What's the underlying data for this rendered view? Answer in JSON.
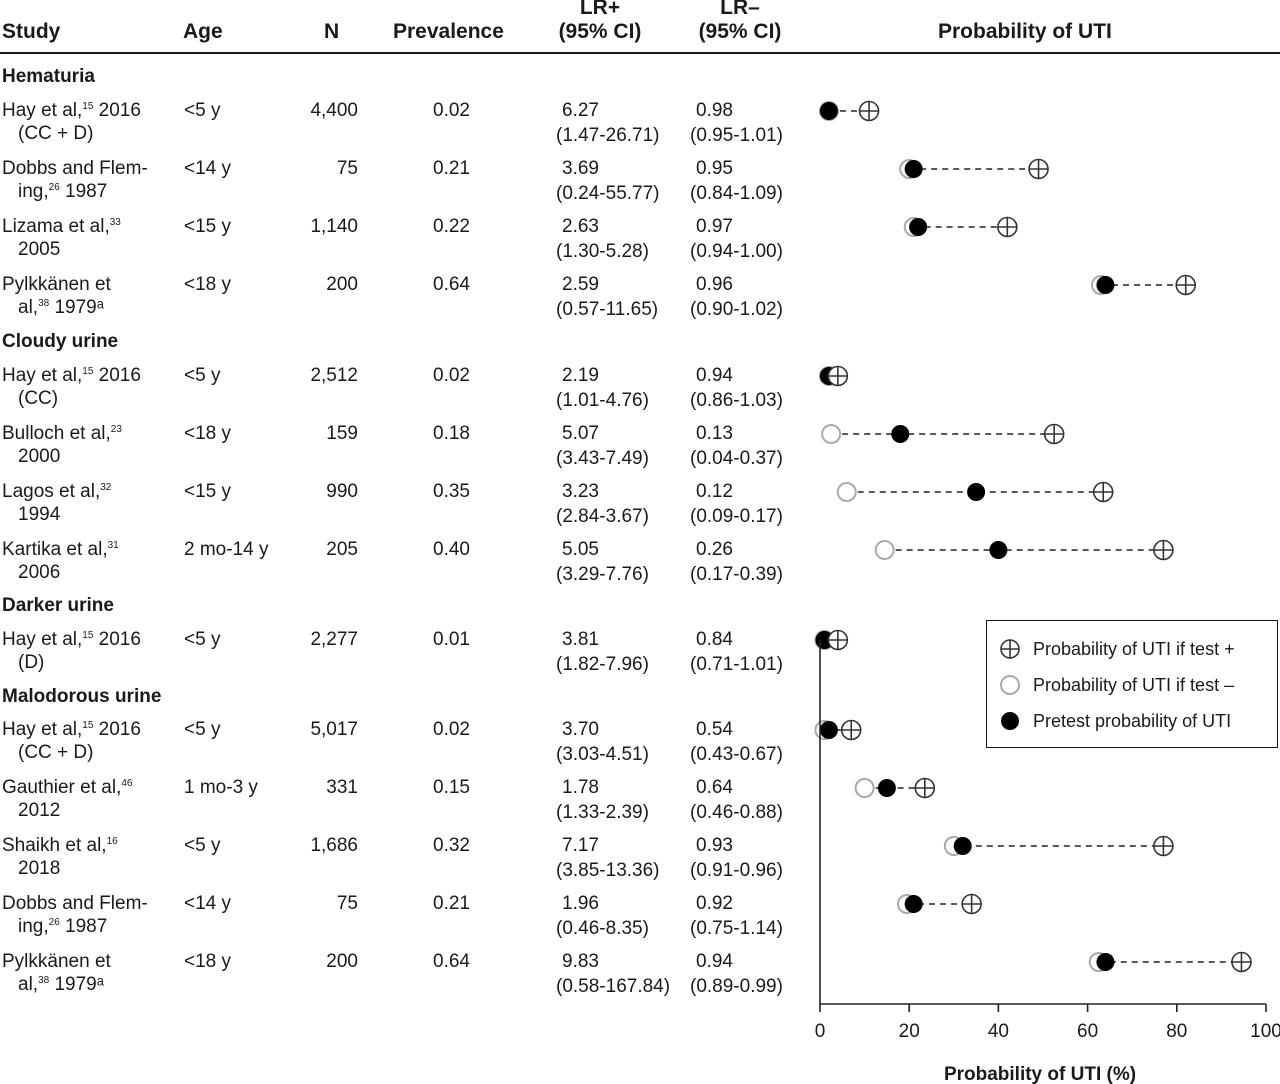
{
  "headers": {
    "study": "Study",
    "age": "Age",
    "n": "N",
    "prevalence": "Prevalence",
    "lrpos": [
      "LR+",
      "(95% CI)"
    ],
    "lrneg": [
      "LR–",
      "(95% CI)"
    ],
    "plot": "Probability of UTI"
  },
  "legend": {
    "pos": "Probability of UTI if test +",
    "neg": "Probability of UTI if test –",
    "pre": "Pretest probability of UTI"
  },
  "chart_data": {
    "type": "scatter",
    "xlabel": "Probability of UTI (%)",
    "xlim": [
      0,
      100
    ],
    "xticks": [
      "0",
      "20",
      "40",
      "60",
      "80",
      "100"
    ],
    "groups": [
      {
        "label": "Hematuria",
        "rows": [
          {
            "study": [
              "Hay et al,",
              "15",
              " 2016"
            ],
            "study2": "(CC + D)",
            "age": "<5 y",
            "n": "4,400",
            "prev": "0.02",
            "lrpos": "6.27",
            "lrpos_ci": "(1.47-26.71)",
            "lrneg": "0.98",
            "lrneg_ci": "(0.95-1.01)",
            "pre": 2,
            "neg": 2,
            "pos": 11
          },
          {
            "study": [
              "Dobbs and Flem-",
              "",
              ""
            ],
            "study2": [
              "ing,",
              "26",
              " 1987"
            ],
            "age": "<14 y",
            "n": "75",
            "prev": "0.21",
            "lrpos": "3.69",
            "lrpos_ci": "(0.24-55.77)",
            "lrneg": "0.95",
            "lrneg_ci": "(0.84-1.09)",
            "pre": 21,
            "neg": 20,
            "pos": 49
          },
          {
            "study": [
              "Lizama et al,",
              "33",
              ""
            ],
            "study2": "2005",
            "age": "<15 y",
            "n": "1,140",
            "prev": "0.22",
            "lrpos": "2.63",
            "lrpos_ci": "(1.30-5.28)",
            "lrneg": "0.97",
            "lrneg_ci": "(0.94-1.00)",
            "pre": 22,
            "neg": 21,
            "pos": 42
          },
          {
            "study": [
              "Pylkkänen et",
              "",
              ""
            ],
            "study2": [
              "al,",
              "38",
              " 1979ᵃ"
            ],
            "age": "<18 y",
            "n": "200",
            "prev": "0.64",
            "lrpos": "2.59",
            "lrpos_ci": "(0.57-11.65)",
            "lrneg": "0.96",
            "lrneg_ci": "(0.90-1.02)",
            "pre": 64,
            "neg": 63,
            "pos": 82
          }
        ]
      },
      {
        "label": "Cloudy urine",
        "rows": [
          {
            "study": [
              "Hay et al,",
              "15",
              " 2016"
            ],
            "study2": "(CC)",
            "age": "<5 y",
            "n": "2,512",
            "prev": "0.02",
            "lrpos": "2.19",
            "lrpos_ci": "(1.01-4.76)",
            "lrneg": "0.94",
            "lrneg_ci": "(0.86-1.03)",
            "pre": 2,
            "neg": 2,
            "pos": 4
          },
          {
            "study": [
              "Bulloch et al,",
              "23",
              ""
            ],
            "study2": "2000",
            "age": "<18 y",
            "n": "159",
            "prev": "0.18",
            "lrpos": "5.07",
            "lrpos_ci": "(3.43-7.49)",
            "lrneg": "0.13",
            "lrneg_ci": "(0.04-0.37)",
            "pre": 18,
            "neg": 2.5,
            "pos": 52.5
          },
          {
            "study": [
              "Lagos et al,",
              "32",
              ""
            ],
            "study2": "1994",
            "age": "<15 y",
            "n": "990",
            "prev": "0.35",
            "lrpos": "3.23",
            "lrpos_ci": "(2.84-3.67)",
            "lrneg": "0.12",
            "lrneg_ci": "(0.09-0.17)",
            "pre": 35,
            "neg": 6,
            "pos": 63.5
          },
          {
            "study": [
              "Kartika et al,",
              "31",
              ""
            ],
            "study2": "2006",
            "age": "2 mo-14 y",
            "n": "205",
            "prev": "0.40",
            "lrpos": "5.05",
            "lrpos_ci": "(3.29-7.76)",
            "lrneg": "0.26",
            "lrneg_ci": "(0.17-0.39)",
            "pre": 40,
            "neg": 14.5,
            "pos": 77
          }
        ]
      },
      {
        "label": "Darker urine",
        "rows": [
          {
            "study": [
              "Hay et al,",
              "15",
              " 2016"
            ],
            "study2": "(D)",
            "age": "<5 y",
            "n": "2,277",
            "prev": "0.01",
            "lrpos": "3.81",
            "lrpos_ci": "(1.82-7.96)",
            "lrneg": "0.84",
            "lrneg_ci": "(0.71-1.01)",
            "pre": 1,
            "neg": 1,
            "pos": 4
          }
        ]
      },
      {
        "label": "Malodorous urine",
        "rows": [
          {
            "study": [
              "Hay et al,",
              "15",
              " 2016"
            ],
            "study2": "(CC + D)",
            "age": "<5 y",
            "n": "5,017",
            "prev": "0.02",
            "lrpos": "3.70",
            "lrpos_ci": "(3.03-4.51)",
            "lrneg": "0.54",
            "lrneg_ci": "(0.43-0.67)",
            "pre": 2,
            "neg": 1,
            "pos": 7
          },
          {
            "study": [
              "Gauthier et al,",
              "46",
              ""
            ],
            "study2": "2012",
            "age": "1 mo-3 y",
            "n": "331",
            "prev": "0.15",
            "lrpos": "1.78",
            "lrpos_ci": "(1.33-2.39)",
            "lrneg": "0.64",
            "lrneg_ci": "(0.46-0.88)",
            "pre": 15,
            "neg": 10,
            "pos": 23.5
          },
          {
            "study": [
              "Shaikh et al,",
              "16",
              ""
            ],
            "study2": "2018",
            "age": "<5 y",
            "n": "1,686",
            "prev": "0.32",
            "lrpos": "7.17",
            "lrpos_ci": "(3.85-13.36)",
            "lrneg": "0.93",
            "lrneg_ci": "(0.91-0.96)",
            "pre": 32,
            "neg": 30,
            "pos": 77
          },
          {
            "study": [
              "Dobbs and Flem-",
              "",
              ""
            ],
            "study2": [
              "ing,",
              "26",
              " 1987"
            ],
            "age": "<14 y",
            "n": "75",
            "prev": "0.21",
            "lrpos": "1.96",
            "lrpos_ci": "(0.46-8.35)",
            "lrneg": "0.92",
            "lrneg_ci": "(0.75-1.14)",
            "pre": 21,
            "neg": 19.5,
            "pos": 34
          },
          {
            "study": [
              "Pylkkänen et",
              "",
              ""
            ],
            "study2": [
              "al,",
              "38",
              " 1979ᵃ"
            ],
            "age": "<18 y",
            "n": "200",
            "prev": "0.64",
            "lrpos": "9.83",
            "lrpos_ci": "(0.58-167.84)",
            "lrneg": "0.94",
            "lrneg_ci": "(0.89-0.99)",
            "pre": 64,
            "neg": 62.5,
            "pos": 94.5
          }
        ]
      }
    ]
  }
}
